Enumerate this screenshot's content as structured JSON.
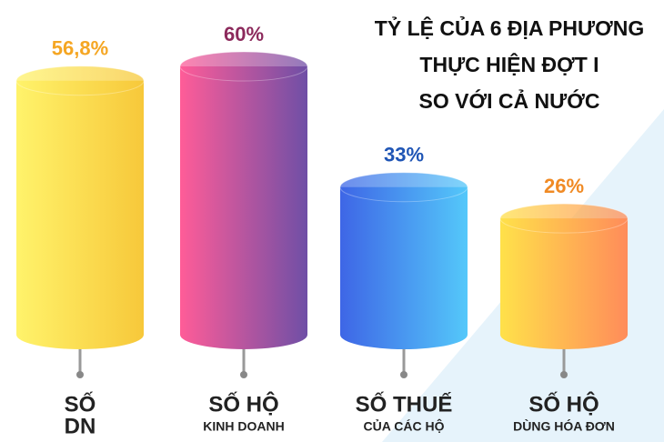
{
  "chart_data": {
    "type": "cylinder-bar",
    "title": [
      "TỶ LỆ CỦA 6 ĐỊA PHƯƠNG",
      "THỰC HIỆN ĐỢT I",
      "SO VỚI CẢ NƯỚC"
    ],
    "categories": [
      [
        "SỐ",
        "DN"
      ],
      [
        "SỐ HỘ",
        "KINH DOANH"
      ],
      [
        "SỐ THUẾ",
        "CỦA CÁC HỘ"
      ],
      [
        "SỐ HỘ",
        "DÙNG HÓA ĐƠN"
      ]
    ],
    "values": [
      56.8,
      60,
      33,
      26
    ],
    "value_labels": [
      "56,8%",
      "60%",
      "33%",
      "26%"
    ],
    "colors": [
      [
        "#fff36b",
        "#f7c83a"
      ],
      [
        "#ff5c98",
        "#6f4fa6"
      ],
      [
        "#3e66e6",
        "#54c8fa"
      ],
      [
        "#ffe14a",
        "#ff8c5a"
      ]
    ],
    "label_colors": [
      "#f5a623",
      "#8c2a5c",
      "#1f55b5",
      "#f08a24"
    ]
  }
}
